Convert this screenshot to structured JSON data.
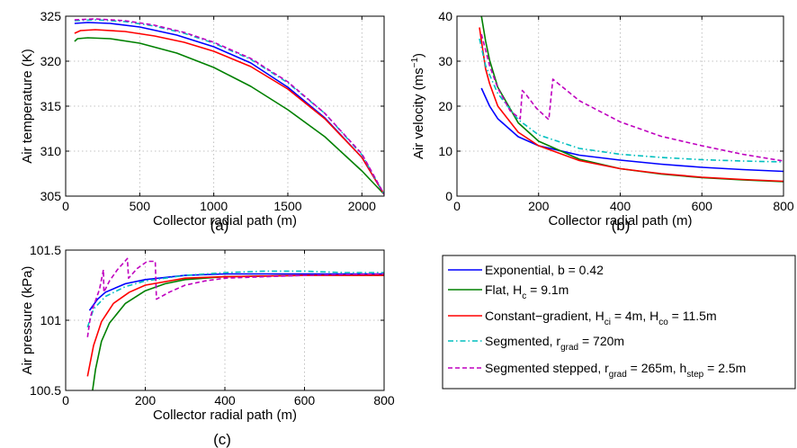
{
  "chart_data": [
    {
      "id": "a",
      "type": "line",
      "caption": "(a)",
      "xlabel": "Collector radial path (m)",
      "ylabel": "Air temperature (K)",
      "xlim": [
        0,
        2150
      ],
      "ylim": [
        305,
        325
      ],
      "xticks": [
        0,
        500,
        1000,
        1500,
        2000
      ],
      "yticks": [
        305,
        310,
        315,
        320,
        325
      ],
      "grid": true,
      "series": [
        {
          "key": "exponential",
          "points": [
            [
              60,
              324.2
            ],
            [
              150,
              324.3
            ],
            [
              300,
              324.2
            ],
            [
              500,
              323.8
            ],
            [
              750,
              322.9
            ],
            [
              1000,
              321.6
            ],
            [
              1250,
              319.8
            ],
            [
              1500,
              317.1
            ],
            [
              1750,
              313.7
            ],
            [
              2000,
              309.3
            ],
            [
              2150,
              305.2
            ]
          ]
        },
        {
          "key": "flat",
          "points": [
            [
              60,
              322.2
            ],
            [
              80,
              322.5
            ],
            [
              150,
              322.6
            ],
            [
              300,
              322.5
            ],
            [
              500,
              322.0
            ],
            [
              750,
              320.9
            ],
            [
              1000,
              319.3
            ],
            [
              1250,
              317.2
            ],
            [
              1500,
              314.6
            ],
            [
              1750,
              311.6
            ],
            [
              2000,
              307.8
            ],
            [
              2150,
              305.2
            ]
          ]
        },
        {
          "key": "constant_gradient",
          "points": [
            [
              60,
              323.1
            ],
            [
              100,
              323.4
            ],
            [
              200,
              323.5
            ],
            [
              400,
              323.3
            ],
            [
              600,
              322.8
            ],
            [
              800,
              322.1
            ],
            [
              1000,
              321.1
            ],
            [
              1250,
              319.4
            ],
            [
              1500,
              316.9
            ],
            [
              1750,
              313.6
            ],
            [
              2000,
              309.3
            ],
            [
              2150,
              305.2
            ]
          ]
        },
        {
          "key": "segmented",
          "points": [
            [
              60,
              324.5
            ],
            [
              200,
              324.6
            ],
            [
              400,
              324.4
            ],
            [
              600,
              323.9
            ],
            [
              800,
              323.1
            ],
            [
              1000,
              322.0
            ],
            [
              1250,
              320.2
            ],
            [
              1500,
              317.6
            ],
            [
              1750,
              314.2
            ],
            [
              2000,
              309.6
            ],
            [
              2150,
              305.2
            ]
          ]
        },
        {
          "key": "segmented_stepped",
          "points": [
            [
              60,
              324.6
            ],
            [
              200,
              324.7
            ],
            [
              400,
              324.5
            ],
            [
              600,
              324.0
            ],
            [
              800,
              323.2
            ],
            [
              1000,
              322.1
            ],
            [
              1250,
              320.3
            ],
            [
              1500,
              317.7
            ],
            [
              1750,
              314.2
            ],
            [
              2000,
              309.7
            ],
            [
              2150,
              305.2
            ]
          ]
        }
      ]
    },
    {
      "id": "b",
      "type": "line",
      "caption": "(b)",
      "xlabel": "Collector radial path (m)",
      "ylabel": "Air velocity (ms",
      "ylabel_sup": "−1",
      "ylabel_end": ")",
      "xlim": [
        0,
        800
      ],
      "ylim": [
        0,
        40
      ],
      "xticks": [
        0,
        200,
        400,
        600,
        800
      ],
      "yticks": [
        0,
        10,
        20,
        30,
        40
      ],
      "grid": true,
      "series": [
        {
          "key": "exponential",
          "points": [
            [
              60,
              24
            ],
            [
              80,
              20
            ],
            [
              100,
              17.2
            ],
            [
              150,
              13.2
            ],
            [
              200,
              11.2
            ],
            [
              300,
              9.1
            ],
            [
              400,
              8
            ],
            [
              500,
              7.1
            ],
            [
              600,
              6.4
            ],
            [
              700,
              5.9
            ],
            [
              800,
              5.5
            ]
          ]
        },
        {
          "key": "flat",
          "points": [
            [
              60,
              40
            ],
            [
              70,
              34.5
            ],
            [
              80,
              30.2
            ],
            [
              100,
              24.2
            ],
            [
              150,
              16.3
            ],
            [
              200,
              12.2
            ],
            [
              300,
              8.2
            ],
            [
              400,
              6.1
            ],
            [
              500,
              4.9
            ],
            [
              600,
              4.1
            ],
            [
              700,
              3.6
            ],
            [
              800,
              3.2
            ]
          ]
        },
        {
          "key": "constant_gradient",
          "points": [
            [
              55,
              37.5
            ],
            [
              70,
              28.3
            ],
            [
              80,
              25
            ],
            [
              100,
              20
            ],
            [
              150,
              14.2
            ],
            [
              200,
              11.2
            ],
            [
              300,
              7.9
            ],
            [
              400,
              6.1
            ],
            [
              500,
              5.0
            ],
            [
              600,
              4.2
            ],
            [
              700,
              3.7
            ],
            [
              800,
              3.3
            ]
          ]
        },
        {
          "key": "segmented",
          "points": [
            [
              55,
              35
            ],
            [
              70,
              29
            ],
            [
              100,
              22.8
            ],
            [
              150,
              17
            ],
            [
              200,
              13.6
            ],
            [
              300,
              10.6
            ],
            [
              400,
              9.3
            ],
            [
              500,
              8.6
            ],
            [
              600,
              8.1
            ],
            [
              700,
              7.8
            ],
            [
              800,
              7.6
            ]
          ]
        },
        {
          "key": "segmented_stepped",
          "points": [
            [
              60,
              36
            ],
            [
              80,
              29
            ],
            [
              100,
              24
            ],
            [
              130,
              19
            ],
            [
              155,
              17.2
            ],
            [
              160,
              23.5
            ],
            [
              170,
              22.5
            ],
            [
              195,
              19.5
            ],
            [
              225,
              17
            ],
            [
              235,
              26
            ],
            [
              300,
              21.2
            ],
            [
              400,
              16.5
            ],
            [
              500,
              13.3
            ],
            [
              600,
              11.2
            ],
            [
              700,
              9.3
            ],
            [
              800,
              7.8
            ]
          ]
        }
      ]
    },
    {
      "id": "c",
      "type": "line",
      "caption": "(c)",
      "xlabel": "Collector radial path (m)",
      "ylabel": "Air pressure (kPa)",
      "xlim": [
        0,
        800
      ],
      "ylim": [
        100.5,
        101.5
      ],
      "xticks": [
        0,
        200,
        400,
        600,
        800
      ],
      "yticks": [
        100.5,
        101,
        101.5
      ],
      "ytick_labels": [
        "100.5",
        "101",
        "101.5"
      ],
      "grid": true,
      "series": [
        {
          "key": "exponential",
          "points": [
            [
              60,
              101.07
            ],
            [
              80,
              101.15
            ],
            [
              100,
              101.2
            ],
            [
              150,
              101.26
            ],
            [
              200,
              101.29
            ],
            [
              300,
              101.32
            ],
            [
              400,
              101.33
            ],
            [
              600,
              101.33
            ],
            [
              800,
              101.33
            ]
          ]
        },
        {
          "key": "flat",
          "points": [
            [
              65,
              100.45
            ],
            [
              75,
              100.65
            ],
            [
              90,
              100.85
            ],
            [
              110,
              100.98
            ],
            [
              150,
              101.12
            ],
            [
              200,
              101.21
            ],
            [
              250,
              101.26
            ],
            [
              300,
              101.29
            ],
            [
              400,
              101.31
            ],
            [
              600,
              101.32
            ],
            [
              800,
              101.32
            ]
          ]
        },
        {
          "key": "constant_gradient",
          "points": [
            [
              55,
              100.6
            ],
            [
              70,
              100.82
            ],
            [
              90,
              100.99
            ],
            [
              120,
              101.12
            ],
            [
              160,
              101.2
            ],
            [
              200,
              101.25
            ],
            [
              300,
              101.3
            ],
            [
              400,
              101.31
            ],
            [
              600,
              101.32
            ],
            [
              800,
              101.32
            ]
          ]
        },
        {
          "key": "segmented",
          "points": [
            [
              55,
              100.95
            ],
            [
              70,
              101.08
            ],
            [
              100,
              101.17
            ],
            [
              150,
              101.24
            ],
            [
              200,
              101.28
            ],
            [
              300,
              101.32
            ],
            [
              400,
              101.34
            ],
            [
              500,
              101.35
            ],
            [
              600,
              101.35
            ],
            [
              700,
              101.34
            ],
            [
              800,
              101.34
            ]
          ]
        },
        {
          "key": "segmented_stepped",
          "points": [
            [
              55,
              100.88
            ],
            [
              62,
              101.02
            ],
            [
              70,
              101.1
            ],
            [
              85,
              101.22
            ],
            [
              95,
              101.36
            ],
            [
              96,
              101.2
            ],
            [
              110,
              101.28
            ],
            [
              130,
              101.36
            ],
            [
              155,
              101.44
            ],
            [
              158,
              101.3
            ],
            [
              180,
              101.37
            ],
            [
              205,
              101.42
            ],
            [
              225,
              101.42
            ],
            [
              228,
              101.15
            ],
            [
              260,
              101.2
            ],
            [
              300,
              101.25
            ],
            [
              350,
              101.28
            ],
            [
              400,
              101.3
            ],
            [
              500,
              101.31
            ],
            [
              600,
              101.32
            ],
            [
              800,
              101.33
            ]
          ]
        }
      ]
    }
  ],
  "series_styles": {
    "exponential": {
      "color": "#0000ff",
      "dash": "solid"
    },
    "flat": {
      "color": "#008000",
      "dash": "solid"
    },
    "constant_gradient": {
      "color": "#ff0000",
      "dash": "solid"
    },
    "segmented": {
      "color": "#00bfbf",
      "dash": "dash-dot"
    },
    "segmented_stepped": {
      "color": "#bf00bf",
      "dash": "dashed"
    }
  },
  "legend": {
    "placement": "bottom-right",
    "entries": [
      {
        "key": "exponential",
        "label": "Exponential, b = 0.42"
      },
      {
        "key": "flat",
        "label": "Flat, H",
        "label_sub": "c",
        "label_end": " = 9.1m"
      },
      {
        "key": "constant_gradient",
        "label": "Constant−gradient, H",
        "label_sub": "ci",
        "label_mid": " = 4m, H",
        "label_sub2": "co",
        "label_end": " = 11.5m"
      },
      {
        "key": "segmented",
        "label": "Segmented, r",
        "label_sub": "grad",
        "label_end": " = 720m"
      },
      {
        "key": "segmented_stepped",
        "label": "Segmented stepped, r",
        "label_sub": "grad",
        "label_mid": " = 265m, h",
        "label_sub2": "step",
        "label_end": " = 2.5m"
      }
    ]
  }
}
